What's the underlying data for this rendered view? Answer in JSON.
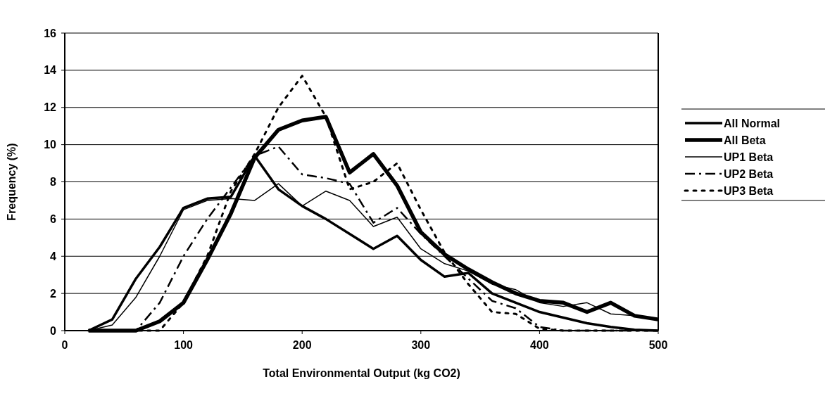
{
  "chart_data": {
    "type": "line",
    "xlabel": "Total Environmental Output (kg CO2)",
    "ylabel": "Frequency (%)",
    "x": [
      20,
      40,
      60,
      80,
      100,
      120,
      140,
      160,
      180,
      200,
      220,
      240,
      260,
      280,
      300,
      320,
      340,
      360,
      380,
      400,
      420,
      440,
      460,
      480,
      500
    ],
    "series": [
      {
        "name": "All Normal",
        "color": "#000000",
        "line_style": "solid",
        "values": [
          0,
          0.6,
          2.8,
          4.5,
          6.6,
          7.1,
          7.2,
          9.4,
          7.6,
          6.7,
          6.0,
          5.2,
          4.4,
          5.1,
          3.8,
          2.9,
          3.1,
          2.0,
          1.5,
          1.0,
          0.7,
          0.4,
          0.2,
          0.05,
          0
        ]
      },
      {
        "name": "All Beta",
        "color": "#000000",
        "line_style": "solid",
        "values": [
          0,
          0,
          0,
          0.5,
          1.5,
          3.8,
          6.3,
          9.3,
          10.8,
          11.3,
          11.5,
          8.5,
          9.5,
          7.8,
          5.3,
          4.1,
          3.3,
          2.6,
          2.0,
          1.6,
          1.5,
          1.0,
          1.5,
          0.8,
          0.6
        ]
      },
      {
        "name": "UP1 Beta",
        "color": "#000000",
        "line_style": "solid",
        "values": [
          0,
          0.3,
          1.8,
          4.0,
          6.5,
          7.0,
          7.1,
          7.0,
          7.9,
          6.7,
          7.5,
          7.0,
          5.6,
          6.1,
          4.4,
          3.6,
          3.2,
          2.5,
          2.2,
          1.5,
          1.3,
          1.5,
          0.9,
          0.8,
          0.6
        ]
      },
      {
        "name": "UP2 Beta",
        "color": "#000000",
        "line_style": "dashed",
        "values": [
          0,
          0,
          0,
          1.5,
          4.0,
          6.0,
          7.7,
          9.4,
          9.9,
          8.4,
          8.2,
          7.9,
          5.8,
          6.6,
          5.2,
          4.0,
          2.8,
          1.6,
          1.2,
          0.2,
          0,
          0,
          0,
          0,
          0
        ]
      },
      {
        "name": "UP3 Beta",
        "color": "#000000",
        "line_style": "dotted",
        "values": [
          0,
          0,
          0,
          0,
          1.5,
          4.0,
          7.5,
          9.5,
          12.0,
          13.7,
          11.5,
          7.6,
          8.0,
          9.0,
          6.5,
          4.2,
          2.5,
          1.0,
          0.9,
          0.1,
          0,
          0,
          0,
          0,
          0
        ]
      }
    ],
    "xlim": [
      0,
      500
    ],
    "xticks": [
      0,
      100,
      200,
      300,
      400,
      500
    ],
    "ylim": [
      0,
      16
    ],
    "yticks": [
      0,
      2,
      4,
      6,
      8,
      10,
      12,
      14,
      16
    ],
    "grid": "y",
    "legend": "right"
  }
}
